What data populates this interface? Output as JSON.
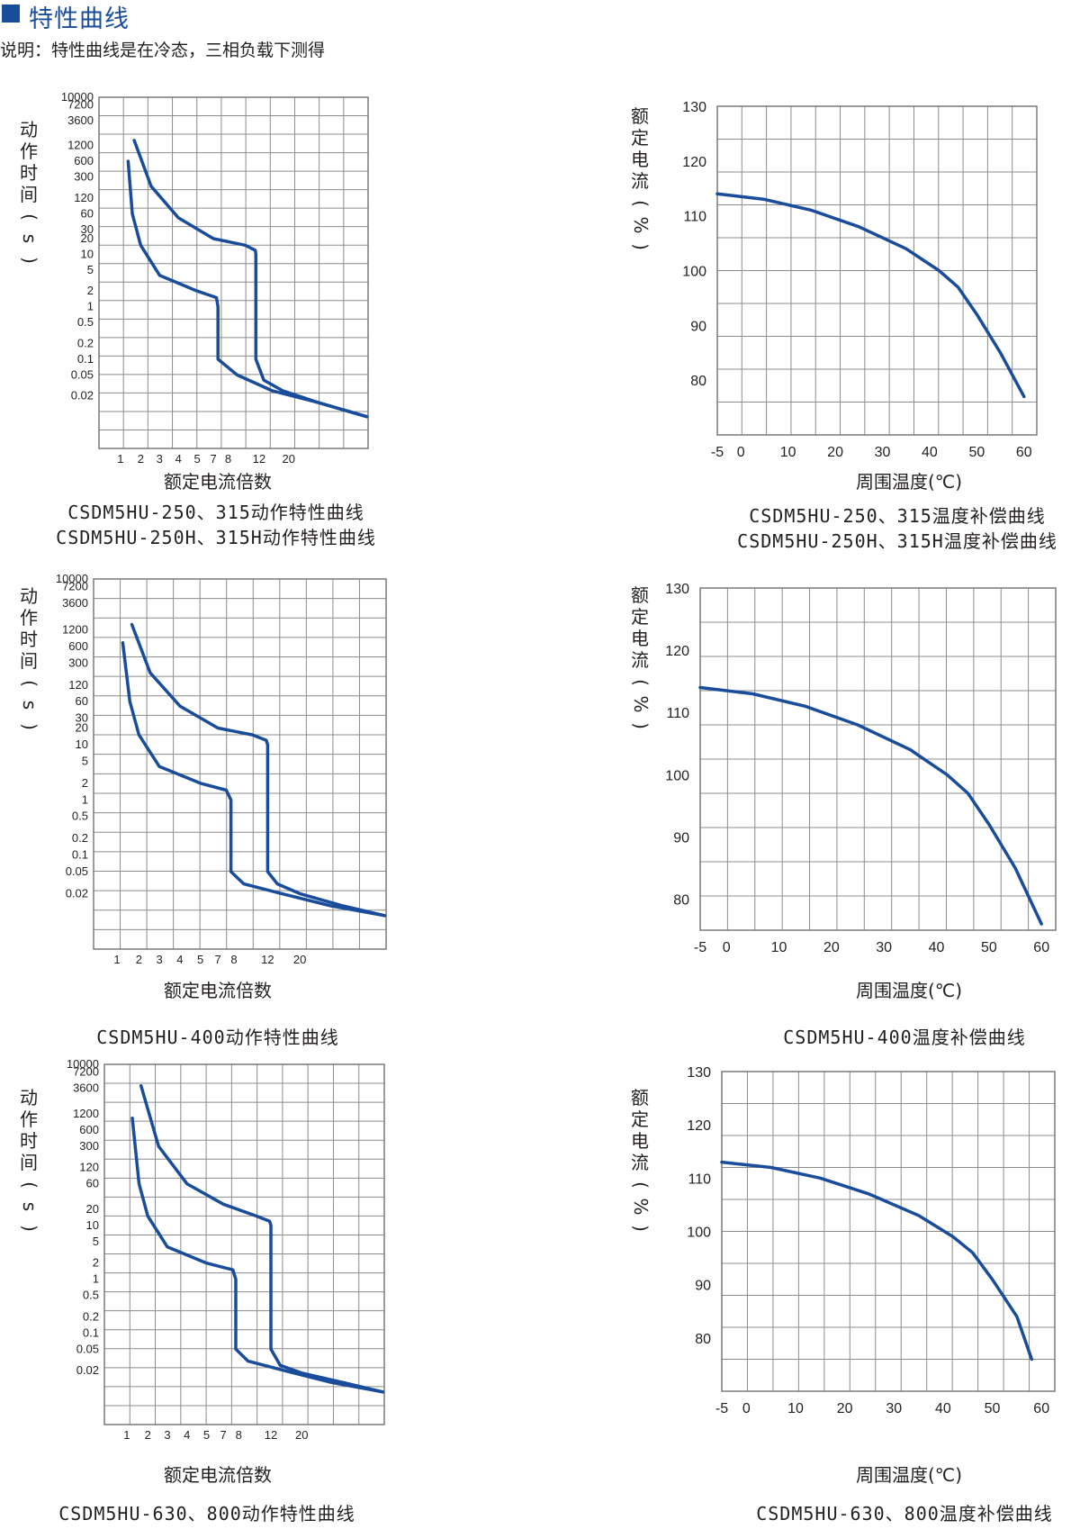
{
  "header": {
    "title": "特性曲线",
    "note": "说明：特性曲线是在冷态，三相负载下测得"
  },
  "colors": {
    "accent": "#1a4c9c",
    "grid": "#8c8c8c",
    "text": "#231f20"
  },
  "chart_data": [
    {
      "type": "line",
      "title": "",
      "captions": [
        "CSDM5HU-250、315动作特性曲线",
        "CSDM5HU-250H、315H动作特性曲线"
      ],
      "xlabel": "额定电流倍数",
      "ylabel": "动作时间(s)",
      "x_ticks": [
        "1",
        "2",
        "3",
        "4",
        "5",
        "7",
        "8",
        "12",
        "20"
      ],
      "y_ticks": [
        "10000",
        "7200",
        "3600",
        "1200",
        "600",
        "300",
        "120",
        "60",
        "30",
        "20",
        "10",
        "5",
        "2",
        "1",
        "0.5",
        "0.2",
        "0.1",
        "0.05",
        "0.02"
      ],
      "grid": true,
      "series": [
        {
          "values": [
            [
              1.3,
              600
            ],
            [
              1.5,
              60
            ],
            [
              2,
              15
            ],
            [
              3,
              4
            ],
            [
              5,
              2
            ],
            [
              7.2,
              1.5
            ],
            [
              7.3,
              1
            ],
            [
              7.3,
              0.1
            ],
            [
              9,
              0.05
            ],
            [
              15,
              0.025
            ],
            [
              30,
              0.015
            ],
            [
              60,
              0.008
            ]
          ]
        },
        {
          "values": [
            [
              1.6,
              1500
            ],
            [
              2.5,
              200
            ],
            [
              4,
              50
            ],
            [
              7,
              20
            ],
            [
              10,
              15
            ],
            [
              11.4,
              12
            ],
            [
              11.5,
              10
            ],
            [
              11.5,
              0.1
            ],
            [
              13,
              0.04
            ],
            [
              18,
              0.025
            ],
            [
              30,
              0.015
            ],
            [
              60,
              0.008
            ]
          ]
        }
      ]
    },
    {
      "type": "line",
      "title": "",
      "captions": [
        "CSDM5HU-250、315温度补偿曲线",
        "CSDM5HU-250H、315H温度补偿曲线"
      ],
      "xlabel": "周围温度(℃)",
      "ylabel": "额定电流(%)",
      "x_ticks": [
        "-5",
        "0",
        "10",
        "20",
        "30",
        "40",
        "50",
        "60"
      ],
      "y_ticks": [
        "130",
        "120",
        "110",
        "100",
        "90",
        "80"
      ],
      "xlim": [
        -5,
        60
      ],
      "ylim": [
        70,
        130
      ],
      "grid": true,
      "series": [
        {
          "values": [
            [
              -5,
              114
            ],
            [
              5,
              113
            ],
            [
              15,
              111
            ],
            [
              25,
              108
            ],
            [
              35,
              104
            ],
            [
              42,
              100
            ],
            [
              46,
              97
            ],
            [
              50,
              92
            ],
            [
              55,
              85
            ],
            [
              60,
              77
            ]
          ]
        }
      ]
    },
    {
      "type": "line",
      "title": "",
      "captions": [
        "CSDM5HU-400动作特性曲线"
      ],
      "xlabel": "额定电流倍数",
      "ylabel": "动作时间(s)",
      "x_ticks": [
        "1",
        "2",
        "3",
        "4",
        "5",
        "7",
        "8",
        "12",
        "20"
      ],
      "y_ticks": [
        "10000",
        "7200",
        "3600",
        "1200",
        "600",
        "300",
        "120",
        "60",
        "30",
        "20",
        "10",
        "5",
        "2",
        "1",
        "0.5",
        "0.2",
        "0.1",
        "0.05",
        "0.02"
      ],
      "grid": true,
      "series": [
        {
          "values": [
            [
              1.2,
              700
            ],
            [
              1.5,
              60
            ],
            [
              2,
              15
            ],
            [
              3,
              4
            ],
            [
              5,
              2
            ],
            [
              7.5,
              1.5
            ],
            [
              7.8,
              1
            ],
            [
              7.8,
              0.05
            ],
            [
              9,
              0.03
            ],
            [
              15,
              0.02
            ],
            [
              30,
              0.012
            ],
            [
              60,
              0.008
            ]
          ]
        },
        {
          "values": [
            [
              1.6,
              1500
            ],
            [
              2.5,
              200
            ],
            [
              4,
              50
            ],
            [
              7,
              20
            ],
            [
              10,
              15
            ],
            [
              11.8,
              12
            ],
            [
              12,
              10
            ],
            [
              12,
              0.05
            ],
            [
              14,
              0.03
            ],
            [
              20,
              0.02
            ],
            [
              35,
              0.012
            ],
            [
              60,
              0.008
            ]
          ]
        }
      ]
    },
    {
      "type": "line",
      "title": "",
      "captions": [
        "CSDM5HU-400温度补偿曲线"
      ],
      "xlabel": "周围温度(℃)",
      "ylabel": "额定电流(%)",
      "x_ticks": [
        "-5",
        "0",
        "10",
        "20",
        "30",
        "40",
        "50",
        "60"
      ],
      "y_ticks": [
        "130",
        "120",
        "110",
        "100",
        "90",
        "80"
      ],
      "xlim": [
        -5,
        60
      ],
      "ylim": [
        75,
        130
      ],
      "grid": true,
      "series": [
        {
          "values": [
            [
              -5,
              114
            ],
            [
              5,
              113
            ],
            [
              15,
              111
            ],
            [
              25,
              108
            ],
            [
              35,
              104
            ],
            [
              42,
              100
            ],
            [
              46,
              97
            ],
            [
              50,
              92
            ],
            [
              55,
              85
            ],
            [
              60,
              76
            ]
          ]
        }
      ]
    },
    {
      "type": "line",
      "title": "",
      "captions": [
        "CSDM5HU-630、800动作特性曲线"
      ],
      "xlabel": "额定电流倍数",
      "ylabel": "动作时间(s)",
      "x_ticks": [
        "1",
        "2",
        "3",
        "4",
        "5",
        "7",
        "8",
        "12",
        "20"
      ],
      "y_ticks": [
        "10000",
        "7200",
        "3600",
        "1200",
        "600",
        "300",
        "120",
        "60",
        "20",
        "10",
        "5",
        "2",
        "1",
        "0.5",
        "0.2",
        "0.1",
        "0.05",
        "0.02"
      ],
      "grid": true,
      "series": [
        {
          "values": [
            [
              1.2,
              1000
            ],
            [
              1.5,
              60
            ],
            [
              2,
              15
            ],
            [
              3,
              4
            ],
            [
              5,
              2
            ],
            [
              7.6,
              1.5
            ],
            [
              7.8,
              1
            ],
            [
              7.8,
              0.05
            ],
            [
              9,
              0.03
            ],
            [
              15,
              0.02
            ],
            [
              30,
              0.012
            ],
            [
              60,
              0.008
            ]
          ]
        },
        {
          "values": [
            [
              1.6,
              4000
            ],
            [
              2.5,
              300
            ],
            [
              4,
              60
            ],
            [
              7,
              25
            ],
            [
              10,
              15
            ],
            [
              11.8,
              12
            ],
            [
              12,
              10
            ],
            [
              12,
              0.05
            ],
            [
              14,
              0.025
            ],
            [
              20,
              0.018
            ],
            [
              35,
              0.012
            ],
            [
              60,
              0.008
            ]
          ]
        }
      ]
    },
    {
      "type": "line",
      "title": "",
      "captions": [
        "CSDM5HU-630、800温度补偿曲线"
      ],
      "xlabel": "周围温度(℃)",
      "ylabel": "额定电流(%)",
      "x_ticks": [
        "-5",
        "0",
        "10",
        "20",
        "30",
        "40",
        "50",
        "60"
      ],
      "y_ticks": [
        "130",
        "120",
        "110",
        "100",
        "90",
        "80"
      ],
      "xlim": [
        -5,
        60
      ],
      "ylim": [
        70,
        130
      ],
      "grid": true,
      "series": [
        {
          "values": [
            [
              -5,
              113
            ],
            [
              5,
              112
            ],
            [
              15,
              110
            ],
            [
              25,
              107
            ],
            [
              35,
              103
            ],
            [
              42,
              99
            ],
            [
              46,
              96
            ],
            [
              50,
              91
            ],
            [
              55,
              84
            ],
            [
              58,
              76
            ]
          ]
        }
      ]
    }
  ]
}
